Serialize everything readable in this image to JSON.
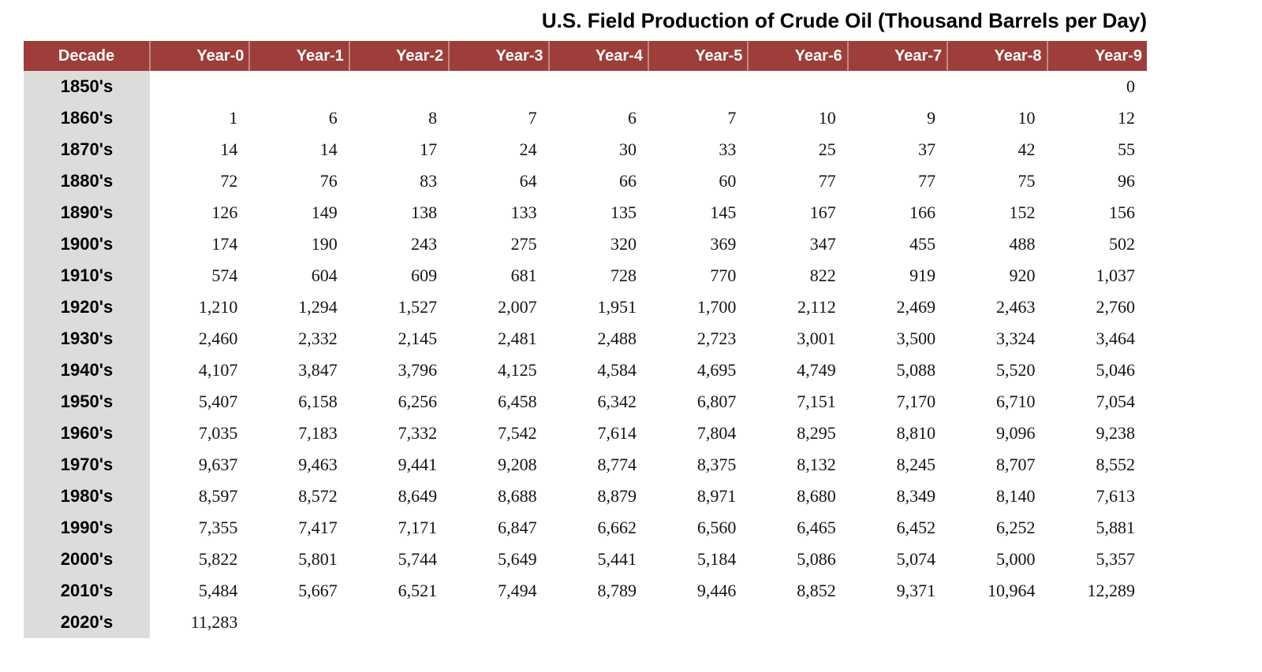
{
  "title": "U.S. Field Production of Crude Oil (Thousand Barrels per Day)",
  "colors": {
    "header_bg": "#9d3e3a",
    "header_separator": "#c08a84",
    "header_text": "#ffffff",
    "decade_column_bg": "#dcdcdc",
    "body_text": "#141414"
  },
  "chart_data": {
    "type": "table",
    "title": "U.S. Field Production of Crude Oil (Thousand Barrels per Day)",
    "columns": [
      "Decade",
      "Year-0",
      "Year-1",
      "Year-2",
      "Year-3",
      "Year-4",
      "Year-5",
      "Year-6",
      "Year-7",
      "Year-8",
      "Year-9"
    ],
    "rows": [
      {
        "decade": "1850's",
        "values": [
          null,
          null,
          null,
          null,
          null,
          null,
          null,
          null,
          null,
          0
        ]
      },
      {
        "decade": "1860's",
        "values": [
          1,
          6,
          8,
          7,
          6,
          7,
          10,
          9,
          10,
          12
        ]
      },
      {
        "decade": "1870's",
        "values": [
          14,
          14,
          17,
          24,
          30,
          33,
          25,
          37,
          42,
          55
        ]
      },
      {
        "decade": "1880's",
        "values": [
          72,
          76,
          83,
          64,
          66,
          60,
          77,
          77,
          75,
          96
        ]
      },
      {
        "decade": "1890's",
        "values": [
          126,
          149,
          138,
          133,
          135,
          145,
          167,
          166,
          152,
          156
        ]
      },
      {
        "decade": "1900's",
        "values": [
          174,
          190,
          243,
          275,
          320,
          369,
          347,
          455,
          488,
          502
        ]
      },
      {
        "decade": "1910's",
        "values": [
          574,
          604,
          609,
          681,
          728,
          770,
          822,
          919,
          920,
          1037
        ]
      },
      {
        "decade": "1920's",
        "values": [
          1210,
          1294,
          1527,
          2007,
          1951,
          1700,
          2112,
          2469,
          2463,
          2760
        ]
      },
      {
        "decade": "1930's",
        "values": [
          2460,
          2332,
          2145,
          2481,
          2488,
          2723,
          3001,
          3500,
          3324,
          3464
        ]
      },
      {
        "decade": "1940's",
        "values": [
          4107,
          3847,
          3796,
          4125,
          4584,
          4695,
          4749,
          5088,
          5520,
          5046
        ]
      },
      {
        "decade": "1950's",
        "values": [
          5407,
          6158,
          6256,
          6458,
          6342,
          6807,
          7151,
          7170,
          6710,
          7054
        ]
      },
      {
        "decade": "1960's",
        "values": [
          7035,
          7183,
          7332,
          7542,
          7614,
          7804,
          8295,
          8810,
          9096,
          9238
        ]
      },
      {
        "decade": "1970's",
        "values": [
          9637,
          9463,
          9441,
          9208,
          8774,
          8375,
          8132,
          8245,
          8707,
          8552
        ]
      },
      {
        "decade": "1980's",
        "values": [
          8597,
          8572,
          8649,
          8688,
          8879,
          8971,
          8680,
          8349,
          8140,
          7613
        ]
      },
      {
        "decade": "1990's",
        "values": [
          7355,
          7417,
          7171,
          6847,
          6662,
          6560,
          6465,
          6452,
          6252,
          5881
        ]
      },
      {
        "decade": "2000's",
        "values": [
          5822,
          5801,
          5744,
          5649,
          5441,
          5184,
          5086,
          5074,
          5000,
          5357
        ]
      },
      {
        "decade": "2010's",
        "values": [
          5484,
          5667,
          6521,
          7494,
          8789,
          9446,
          8852,
          9371,
          10964,
          12289
        ]
      },
      {
        "decade": "2020's",
        "values": [
          11283,
          null,
          null,
          null,
          null,
          null,
          null,
          null,
          null,
          null
        ]
      }
    ]
  }
}
